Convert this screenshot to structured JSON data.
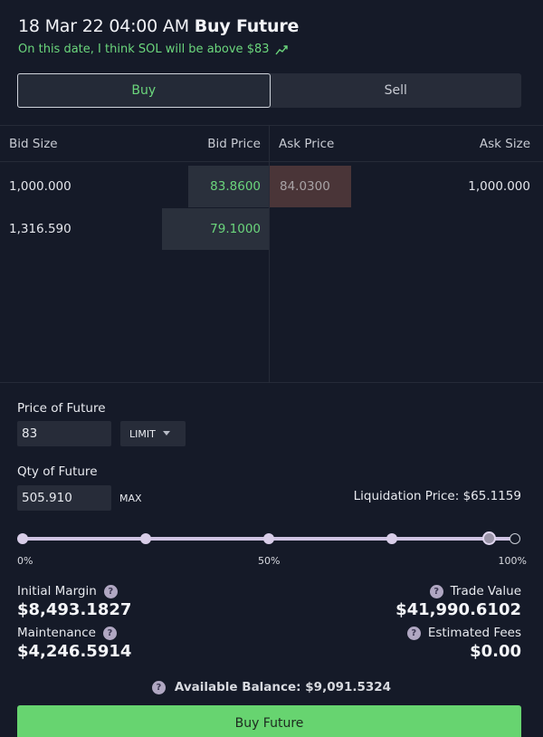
{
  "header": {
    "date": "18 Mar 22 04:00 AM",
    "action": "Buy Future",
    "subtitle": "On this date, I think SOL will be above $83"
  },
  "side_toggle": {
    "buy": "Buy",
    "sell": "Sell",
    "selected": "Buy"
  },
  "orderbook": {
    "headers": {
      "bid_size": "Bid Size",
      "bid_price": "Bid Price",
      "ask_price": "Ask Price",
      "ask_size": "Ask Size"
    },
    "bids": [
      {
        "size": "1,000.000",
        "price": "83.8600"
      },
      {
        "size": "1,316.590",
        "price": "79.1000"
      }
    ],
    "asks": [
      {
        "price": "84.0300",
        "size": "1,000.000"
      }
    ]
  },
  "form": {
    "price_label": "Price of Future",
    "price_value": "83",
    "order_type": "LIMIT",
    "qty_label": "Qty of Future",
    "qty_value": "505.910",
    "max_label": "MAX",
    "liquidation": "Liquidation Price: $65.1159"
  },
  "slider": {
    "value_percent": 96,
    "tick_labels": [
      "0%",
      "50%",
      "100%"
    ]
  },
  "stats": {
    "initial_margin_label": "Initial Margin",
    "initial_margin_value": "$8,493.1827",
    "maintenance_label": "Maintenance",
    "maintenance_value": "$4,246.5914",
    "trade_value_label": "Trade Value",
    "trade_value_value": "$41,990.6102",
    "fees_label": "Estimated Fees",
    "fees_value": "$0.00"
  },
  "balance": "Available Balance: $9,091.5324",
  "submit_label": "Buy Future",
  "colors": {
    "accent_green": "#67d470",
    "background": "#151a28",
    "panel": "#272c39",
    "ask_bar": "#4a3538"
  },
  "icons": {
    "trend": "trend-up-icon",
    "help": "help-icon"
  }
}
